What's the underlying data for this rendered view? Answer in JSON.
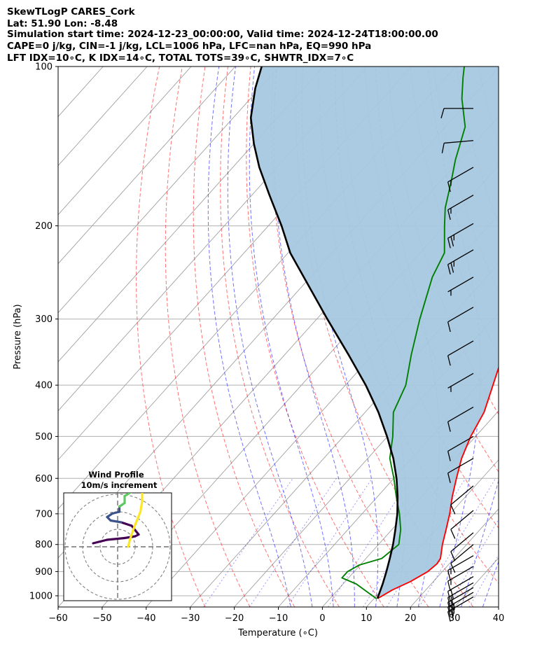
{
  "chart_data": {
    "type": "skew-t-logp",
    "title_lines": [
      "SkewTLogP CARES_Cork",
      "Lat: 51.90   Lon: -8.48",
      "Simulation start time: 2024-12-23_00:00:00, Valid time: 2024-12-24T18:00:00.00",
      "CAPE=0 j/kg, CIN=-1 j/kg, LCL=1006 hPa, LFC=nan hPa, EQ=990 hPa",
      "LFT IDX=10∘C, K IDX=14∘C, TOTAL TOTS=39∘C, SHWTR_IDX=7∘C"
    ],
    "xlabel": "Temperature (∘C)",
    "ylabel": "Pressure (hPa)",
    "xlim": [
      -60,
      40
    ],
    "ylim": [
      1050,
      100
    ],
    "x_ticks": [
      -60,
      -50,
      -40,
      -30,
      -20,
      -10,
      0,
      10,
      20,
      30,
      40
    ],
    "x_tick_labels": [
      "−60",
      "−50",
      "−40",
      "−30",
      "−20",
      "−10",
      "0",
      "10",
      "20",
      "30",
      "40"
    ],
    "y_ticks": [
      1000,
      900,
      800,
      700,
      600,
      500,
      400,
      300,
      200,
      100
    ],
    "y_tick_labels": [
      "1000",
      "900",
      "800",
      "700",
      "600",
      "500",
      "400",
      "300",
      "200",
      "100"
    ],
    "grid": true,
    "colors": {
      "temperature": "#ff0000",
      "dewpoint": "#008000",
      "parcel": "#000000",
      "cape_fill": "#a6c8e0",
      "dry_adiabat": "#ff0000",
      "moist_adiabat": "#0000ff",
      "mixing_ratio": "#0000ff",
      "isotherm": "#a0a0a0"
    },
    "series": [
      {
        "key": "temperature",
        "points": [
          [
            10.8,
            1012
          ],
          [
            12.4,
            975
          ],
          [
            14.8,
            940
          ],
          [
            16.7,
            900
          ],
          [
            17.2,
            870
          ],
          [
            16.9,
            850
          ],
          [
            14.5,
            800
          ],
          [
            12.3,
            750
          ],
          [
            9.9,
            700
          ],
          [
            7.0,
            650
          ],
          [
            4.2,
            600
          ],
          [
            1.3,
            550
          ],
          [
            -1.1,
            500
          ],
          [
            -3.0,
            450
          ],
          [
            -6.5,
            400
          ],
          [
            -10.5,
            350
          ],
          [
            -15.2,
            300
          ],
          [
            -20.6,
            250
          ],
          [
            -25.6,
            225
          ],
          [
            -29.2,
            200
          ],
          [
            -33.0,
            175
          ],
          [
            -36.8,
            160
          ],
          [
            -41.0,
            145
          ],
          [
            -45.6,
            130
          ],
          [
            -50.5,
            120
          ],
          [
            -55.8,
            110
          ],
          [
            -59.0,
            105
          ],
          [
            -62.0,
            100
          ]
        ]
      },
      {
        "key": "dewpoint",
        "points": [
          [
            10.5,
            1012
          ],
          [
            3.0,
            950
          ],
          [
            -1.5,
            925
          ],
          [
            -1.5,
            900
          ],
          [
            -0.2,
            875
          ],
          [
            3.6,
            850
          ],
          [
            4.6,
            800
          ],
          [
            2.0,
            750
          ],
          [
            -1.5,
            700
          ],
          [
            -5.7,
            650
          ],
          [
            -10.0,
            600
          ],
          [
            -15.0,
            550
          ],
          [
            -18.8,
            500
          ],
          [
            -23.6,
            450
          ],
          [
            -26.3,
            400
          ],
          [
            -31.3,
            350
          ],
          [
            -36.6,
            300
          ],
          [
            -42.3,
            250
          ],
          [
            -44.5,
            225
          ],
          [
            -50.0,
            200
          ],
          [
            -53.5,
            185
          ],
          [
            -57.5,
            165
          ],
          [
            -61.0,
            150
          ],
          [
            -65.5,
            130
          ],
          [
            -72.0,
            115
          ],
          [
            -76.0,
            105
          ],
          [
            -78.0,
            100
          ]
        ]
      },
      {
        "key": "parcel",
        "points": [
          [
            10.8,
            1012
          ],
          [
            10.6,
            1006
          ],
          [
            9.0,
            950
          ],
          [
            7.3,
            900
          ],
          [
            5.4,
            850
          ],
          [
            3.3,
            800
          ],
          [
            0.8,
            750
          ],
          [
            -2.0,
            700
          ],
          [
            -5.4,
            650
          ],
          [
            -9.4,
            600
          ],
          [
            -14.2,
            550
          ],
          [
            -20.1,
            500
          ],
          [
            -27.0,
            450
          ],
          [
            -35.4,
            400
          ],
          [
            -45.6,
            350
          ],
          [
            -57.6,
            300
          ],
          [
            -71.5,
            250
          ],
          [
            -79.5,
            225
          ],
          [
            -87.0,
            200
          ],
          [
            -96.0,
            175
          ],
          [
            -104.0,
            155
          ],
          [
            -110.0,
            140
          ],
          [
            -116.0,
            125
          ],
          [
            -121.0,
            110
          ],
          [
            -124.0,
            100
          ]
        ]
      }
    ],
    "wind_barbs": [
      {
        "p": 1005,
        "speed_kt": 25,
        "dir": 240
      },
      {
        "p": 985,
        "speed_kt": 25,
        "dir": 240
      },
      {
        "p": 965,
        "speed_kt": 20,
        "dir": 240
      },
      {
        "p": 945,
        "speed_kt": 20,
        "dir": 240
      },
      {
        "p": 920,
        "speed_kt": 20,
        "dir": 240
      },
      {
        "p": 880,
        "speed_kt": 15,
        "dir": 240
      },
      {
        "p": 840,
        "speed_kt": 15,
        "dir": 240
      },
      {
        "p": 800,
        "speed_kt": 10,
        "dir": 230
      },
      {
        "p": 760,
        "speed_kt": 10,
        "dir": 230
      },
      {
        "p": 690,
        "speed_kt": 10,
        "dir": 230
      },
      {
        "p": 620,
        "speed_kt": 10,
        "dir": 230
      },
      {
        "p": 550,
        "speed_kt": 10,
        "dir": 240
      },
      {
        "p": 500,
        "speed_kt": 10,
        "dir": 240
      },
      {
        "p": 440,
        "speed_kt": 10,
        "dir": 240
      },
      {
        "p": 380,
        "speed_kt": 5,
        "dir": 240
      },
      {
        "p": 330,
        "speed_kt": 10,
        "dir": 240
      },
      {
        "p": 285,
        "speed_kt": 10,
        "dir": 240
      },
      {
        "p": 250,
        "speed_kt": 5,
        "dir": 240
      },
      {
        "p": 222,
        "speed_kt": 25,
        "dir": 240
      },
      {
        "p": 198,
        "speed_kt": 25,
        "dir": 240
      },
      {
        "p": 175,
        "speed_kt": 15,
        "dir": 240
      },
      {
        "p": 155,
        "speed_kt": 15,
        "dir": 240
      },
      {
        "p": 138,
        "speed_kt": 10,
        "dir": 265
      },
      {
        "p": 120,
        "speed_kt": 10,
        "dir": 270
      }
    ],
    "inset": {
      "title_lines": [
        "Wind Profile",
        "10m/s increment"
      ],
      "ring_radii": [
        1,
        2,
        3
      ],
      "hodograph_uv": [
        [
          -1.4,
          0.2
        ],
        [
          -0.6,
          0.4
        ],
        [
          0.4,
          0.5
        ],
        [
          1.0,
          0.6
        ],
        [
          1.2,
          0.7
        ],
        [
          0.8,
          1.2
        ],
        [
          0.2,
          1.4
        ],
        [
          -0.4,
          1.5
        ],
        [
          -0.6,
          1.7
        ],
        [
          -0.3,
          1.9
        ],
        [
          0.1,
          2.0
        ],
        [
          0.1,
          2.3
        ],
        [
          0.4,
          2.5
        ],
        [
          0.4,
          2.9
        ],
        [
          0.9,
          3.2
        ],
        [
          1.2,
          3.3
        ],
        [
          1.4,
          3.1
        ],
        [
          1.4,
          2.6
        ],
        [
          1.3,
          2.0
        ],
        [
          1.1,
          1.5
        ],
        [
          0.9,
          1.0
        ],
        [
          0.7,
          0.4
        ],
        [
          0.6,
          0.0
        ]
      ]
    }
  }
}
